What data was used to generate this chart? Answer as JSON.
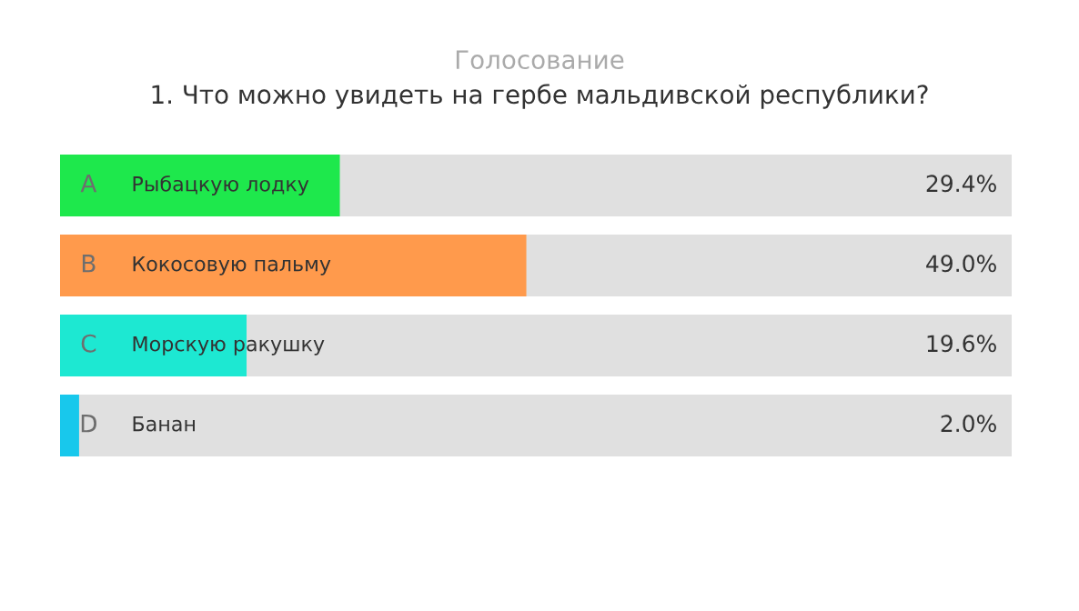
{
  "chart_data": {
    "type": "bar",
    "orientation": "horizontal",
    "title": "Голосование",
    "subtitle": "1. Что можно увидеть на гербе мальдивской республики?",
    "categories": [
      "Рыбацкую лодку",
      "Кокосовую пальму",
      "Морскую ракушку",
      "Банан"
    ],
    "values": [
      29.4,
      49.0,
      19.6,
      2.0
    ],
    "colors": [
      "#1ee84c",
      "#ff9a4c",
      "#1de8d2",
      "#18c8ec"
    ],
    "value_labels": [
      "29.4%",
      "49.0%",
      "19.6%",
      "2.0%"
    ],
    "annotations": [
      "A",
      "B",
      "C",
      "D"
    ],
    "xlim": [
      0,
      100
    ]
  }
}
